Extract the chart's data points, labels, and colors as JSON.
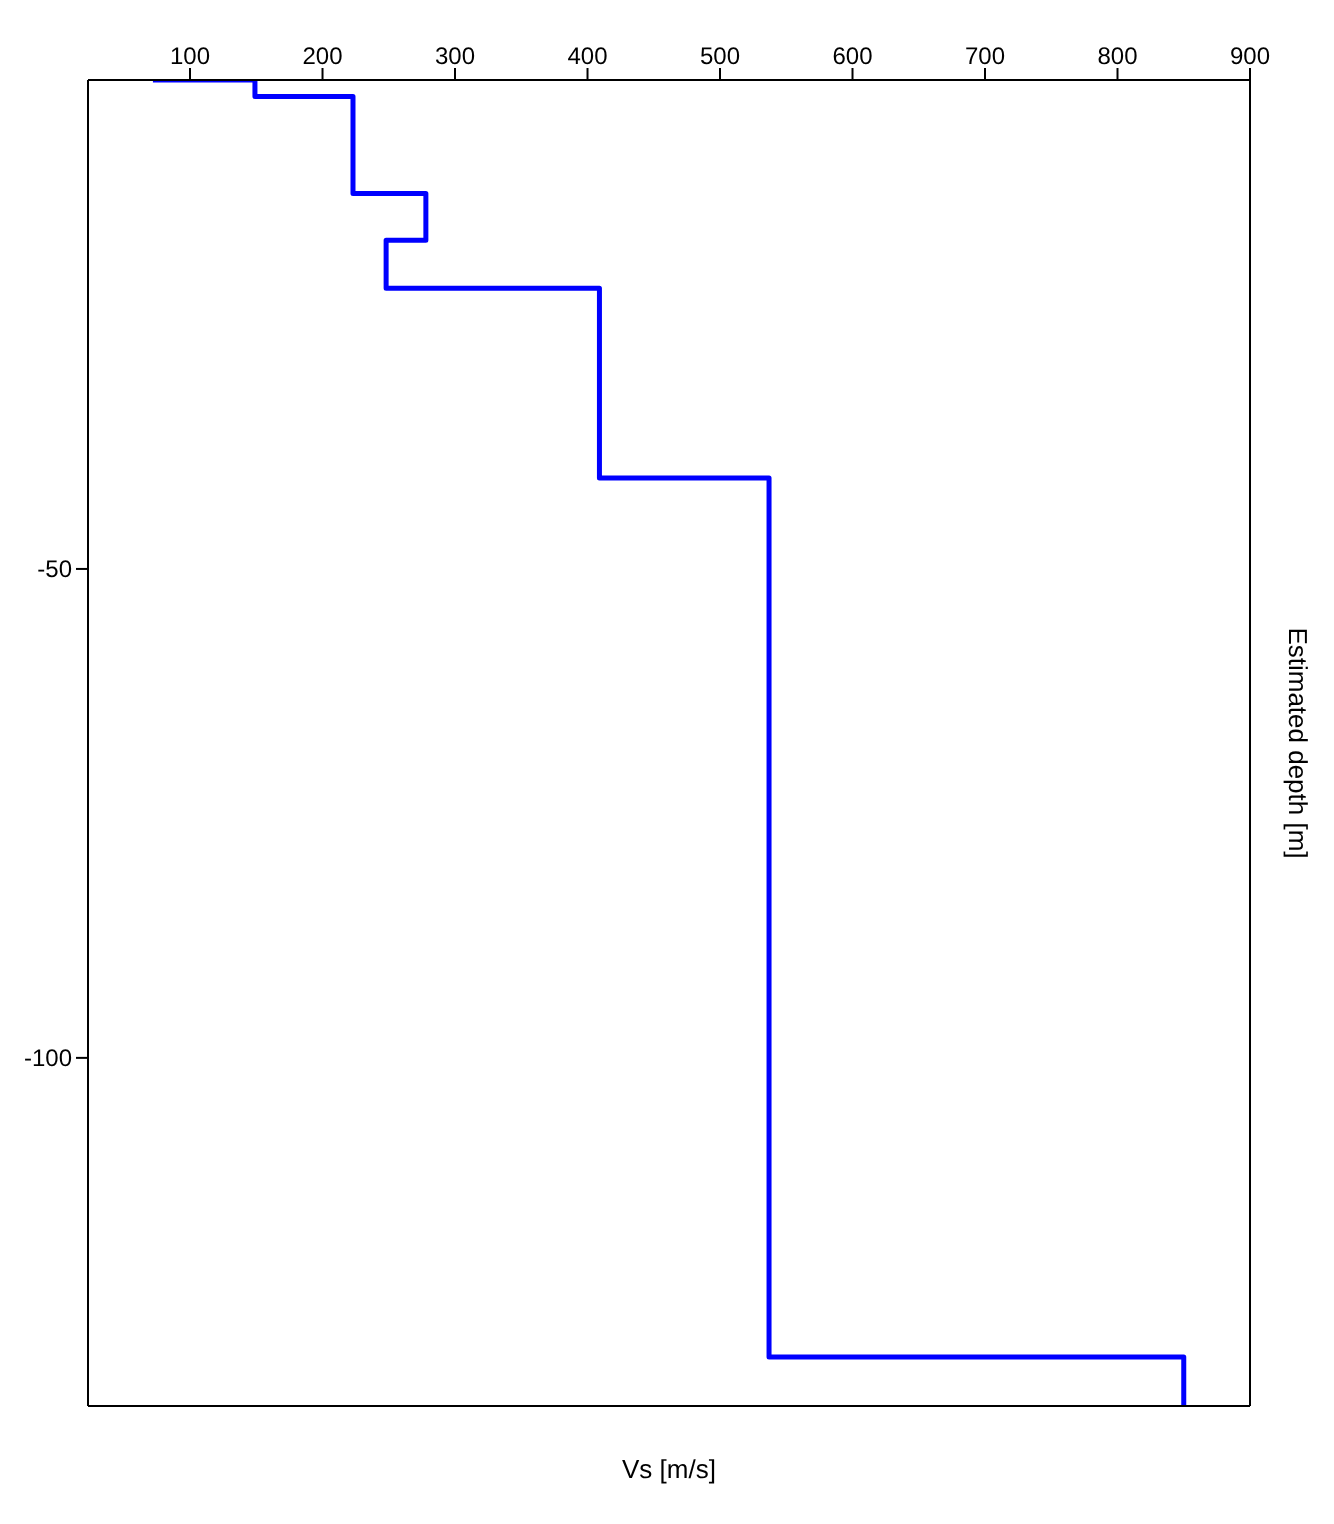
{
  "chart_data": {
    "type": "line",
    "xlabel": "Vs [m/s]",
    "ylabel": "Estimated depth [m]",
    "xlim": [
      23,
      900
    ],
    "xticks": [
      100,
      200,
      300,
      400,
      500,
      600,
      700,
      800,
      900
    ],
    "ylim": [
      -135.6,
      0
    ],
    "yticks": [
      -50,
      -100
    ],
    "marker": "none",
    "line_style": "solid",
    "series": [
      {
        "color": "#0000ff",
        "x": [
          72,
          149,
          149,
          223,
          223,
          278,
          278,
          248,
          248,
          409,
          409,
          537,
          537,
          850,
          850
        ],
        "values": [
          0,
          0,
          -1.7,
          -1.7,
          -11.6,
          -11.6,
          -16.4,
          -16.4,
          -21.3,
          -21.3,
          -40.7,
          -40.7,
          -130.6,
          -130.6,
          -135.6
        ]
      }
    ]
  }
}
